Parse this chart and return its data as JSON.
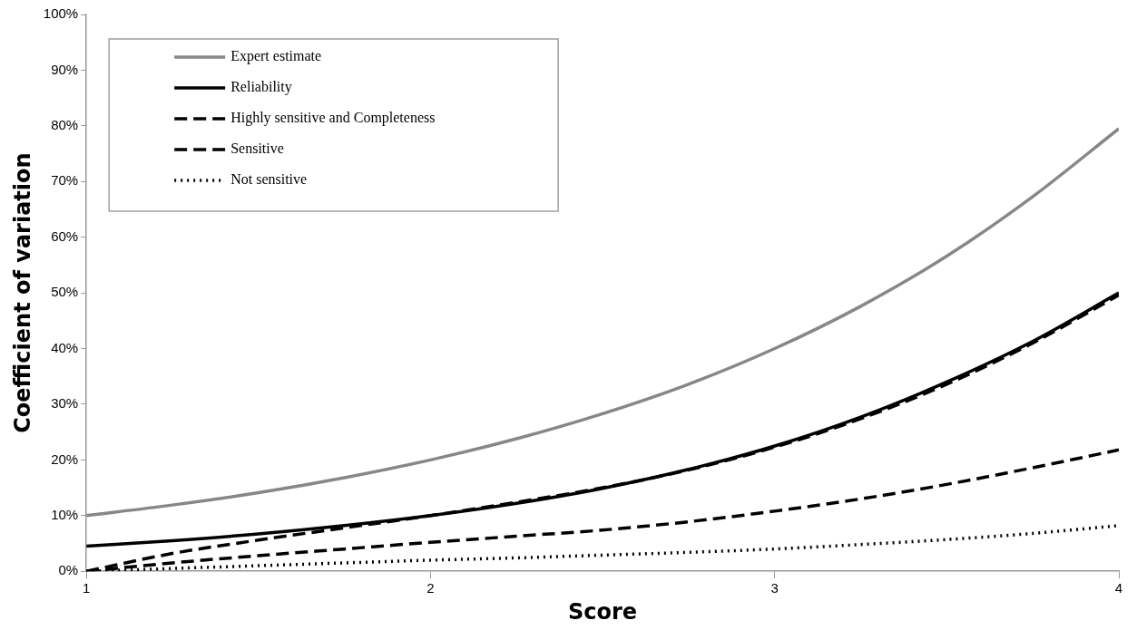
{
  "chart_data": {
    "type": "line",
    "xlabel": "Score",
    "ylabel": "Coefficient of variation",
    "x": [
      1,
      1.25,
      1.5,
      1.75,
      2,
      2.25,
      2.5,
      2.75,
      3,
      3.25,
      3.5,
      3.75,
      4
    ],
    "series": [
      {
        "name": "Expert estimate",
        "color": "#878787",
        "line_style": "solid",
        "values": [
          10,
          11.9,
          14.1,
          16.8,
          20,
          23.8,
          28.3,
          33.6,
          40,
          47.6,
          56.6,
          67.3,
          79.5
        ]
      },
      {
        "name": "Reliability",
        "color": "#000000",
        "line_style": "solid",
        "values": [
          4.5,
          5.5,
          6.7,
          8.2,
          10,
          12.2,
          14.9,
          18.3,
          22.5,
          27.7,
          34,
          41.3,
          50
        ]
      },
      {
        "name": "Highly sensitive and Completeness",
        "color": "#000000",
        "line_style": "dashed",
        "values": [
          0,
          3.2,
          5.6,
          7.8,
          10,
          12.4,
          15,
          18.2,
          22.3,
          27.4,
          33.6,
          41,
          49.6
        ]
      },
      {
        "name": "Sensitive",
        "color": "#000000",
        "line_style": "dashed",
        "values": [
          0,
          1.5,
          2.8,
          4,
          5.2,
          6.3,
          7.4,
          8.9,
          10.8,
          13,
          15.6,
          18.6,
          21.8
        ]
      },
      {
        "name": "Not sensitive",
        "color": "#000000",
        "line_style": "dotted",
        "values": [
          0,
          0.5,
          1,
          1.5,
          2,
          2.4,
          2.9,
          3.4,
          4,
          4.8,
          5.7,
          6.8,
          8.2
        ]
      }
    ],
    "xlim": [
      1,
      4
    ],
    "xticks": [
      1,
      2,
      3,
      4
    ],
    "ylim": [
      0,
      100
    ],
    "yticks": [
      {
        "value": 0,
        "label": "0%"
      },
      {
        "value": 10,
        "label": "10%"
      },
      {
        "value": 20,
        "label": "20%"
      },
      {
        "value": 30,
        "label": "30%"
      },
      {
        "value": 40,
        "label": "40%"
      },
      {
        "value": 50,
        "label": "50%"
      },
      {
        "value": 60,
        "label": "60%"
      },
      {
        "value": 70,
        "label": "70%"
      },
      {
        "value": 80,
        "label": "80%"
      },
      {
        "value": 90,
        "label": "90%"
      },
      {
        "value": 100,
        "label": "100%"
      }
    ],
    "grid": false,
    "legend": "top left",
    "marker": "none"
  }
}
